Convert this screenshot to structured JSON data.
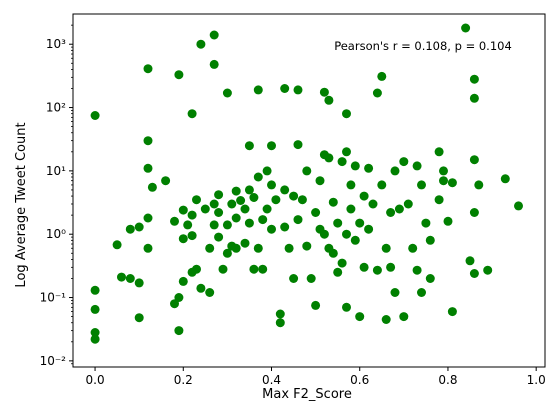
{
  "chart_data": {
    "type": "scatter",
    "xlabel": "Max F2_Score",
    "ylabel": "Log Average Tweet Count",
    "annotation": "Pearson's r = 0.108, p = 0.104",
    "x_scale": "linear",
    "y_scale": "log",
    "xlim": [
      -0.05,
      1.02
    ],
    "ylim": [
      0.008,
      3000
    ],
    "x_ticks": [
      0.0,
      0.2,
      0.4,
      0.6,
      0.8,
      1.0
    ],
    "x_tick_labels": [
      "0.0",
      "0.2",
      "0.4",
      "0.6",
      "0.8",
      "1.0"
    ],
    "y_ticks": [
      0.01,
      0.1,
      1,
      10,
      100,
      1000
    ],
    "y_tick_labels": [
      "10⁻²",
      "10⁻¹",
      "10⁰",
      "10¹",
      "10²",
      "10³"
    ],
    "grid": false,
    "marker_color": "#008000",
    "points": [
      [
        0.0,
        75
      ],
      [
        0.0,
        0.13
      ],
      [
        0.0,
        0.065
      ],
      [
        0.0,
        0.028
      ],
      [
        0.0,
        0.022
      ],
      [
        0.05,
        0.68
      ],
      [
        0.06,
        0.21
      ],
      [
        0.08,
        1.2
      ],
      [
        0.08,
        0.2
      ],
      [
        0.1,
        1.3
      ],
      [
        0.1,
        0.17
      ],
      [
        0.1,
        0.048
      ],
      [
        0.12,
        410
      ],
      [
        0.12,
        30
      ],
      [
        0.12,
        11
      ],
      [
        0.12,
        1.8
      ],
      [
        0.12,
        0.6
      ],
      [
        0.13,
        5.5
      ],
      [
        0.16,
        7
      ],
      [
        0.18,
        1.6
      ],
      [
        0.18,
        0.08
      ],
      [
        0.19,
        330
      ],
      [
        0.19,
        0.1
      ],
      [
        0.19,
        0.03
      ],
      [
        0.2,
        2.4
      ],
      [
        0.2,
        0.85
      ],
      [
        0.2,
        0.18
      ],
      [
        0.21,
        1.4
      ],
      [
        0.22,
        80
      ],
      [
        0.22,
        2.0
      ],
      [
        0.22,
        0.95
      ],
      [
        0.22,
        0.25
      ],
      [
        0.23,
        3.5
      ],
      [
        0.23,
        0.28
      ],
      [
        0.24,
        1000
      ],
      [
        0.24,
        0.14
      ],
      [
        0.25,
        2.5
      ],
      [
        0.26,
        0.6
      ],
      [
        0.26,
        0.12
      ],
      [
        0.27,
        1400
      ],
      [
        0.27,
        480
      ],
      [
        0.27,
        3.0
      ],
      [
        0.27,
        1.4
      ],
      [
        0.28,
        4.2
      ],
      [
        0.28,
        2.2
      ],
      [
        0.28,
        0.9
      ],
      [
        0.29,
        0.28
      ],
      [
        0.3,
        170
      ],
      [
        0.3,
        1.4
      ],
      [
        0.3,
        0.5
      ],
      [
        0.31,
        3.0
      ],
      [
        0.31,
        0.65
      ],
      [
        0.32,
        4.8
      ],
      [
        0.32,
        1.8
      ],
      [
        0.32,
        0.6
      ],
      [
        0.33,
        3.4
      ],
      [
        0.34,
        0.72
      ],
      [
        0.34,
        2.5
      ],
      [
        0.35,
        25
      ],
      [
        0.35,
        5.0
      ],
      [
        0.35,
        1.5
      ],
      [
        0.36,
        3.8
      ],
      [
        0.36,
        0.28
      ],
      [
        0.37,
        190
      ],
      [
        0.37,
        8.0
      ],
      [
        0.37,
        0.6
      ],
      [
        0.38,
        1.7
      ],
      [
        0.38,
        0.28
      ],
      [
        0.39,
        10
      ],
      [
        0.39,
        2.5
      ],
      [
        0.4,
        25
      ],
      [
        0.4,
        6.0
      ],
      [
        0.4,
        1.2
      ],
      [
        0.41,
        3.5
      ],
      [
        0.42,
        0.055
      ],
      [
        0.42,
        0.04
      ],
      [
        0.43,
        200
      ],
      [
        0.43,
        5.0
      ],
      [
        0.43,
        1.3
      ],
      [
        0.44,
        0.6
      ],
      [
        0.45,
        4.0
      ],
      [
        0.45,
        0.2
      ],
      [
        0.46,
        190
      ],
      [
        0.46,
        26
      ],
      [
        0.46,
        1.7
      ],
      [
        0.47,
        3.5
      ],
      [
        0.48,
        10
      ],
      [
        0.48,
        0.65
      ],
      [
        0.49,
        0.2
      ],
      [
        0.5,
        2.2
      ],
      [
        0.5,
        0.075
      ],
      [
        0.51,
        7.0
      ],
      [
        0.51,
        1.2
      ],
      [
        0.52,
        175
      ],
      [
        0.52,
        18
      ],
      [
        0.52,
        1.0
      ],
      [
        0.53,
        0.6
      ],
      [
        0.53,
        130
      ],
      [
        0.53,
        16
      ],
      [
        0.54,
        3.2
      ],
      [
        0.54,
        0.5
      ],
      [
        0.55,
        1.5
      ],
      [
        0.55,
        0.25
      ],
      [
        0.56,
        14
      ],
      [
        0.56,
        0.35
      ],
      [
        0.57,
        80
      ],
      [
        0.57,
        20
      ],
      [
        0.57,
        1.0
      ],
      [
        0.57,
        0.07
      ],
      [
        0.58,
        6.0
      ],
      [
        0.58,
        2.5
      ],
      [
        0.59,
        12
      ],
      [
        0.59,
        0.8
      ],
      [
        0.6,
        1.5
      ],
      [
        0.6,
        0.05
      ],
      [
        0.61,
        4.0
      ],
      [
        0.61,
        0.3
      ],
      [
        0.62,
        11
      ],
      [
        0.62,
        1.2
      ],
      [
        0.63,
        3.0
      ],
      [
        0.64,
        170
      ],
      [
        0.64,
        0.27
      ],
      [
        0.65,
        310
      ],
      [
        0.65,
        6.0
      ],
      [
        0.66,
        0.6
      ],
      [
        0.66,
        0.045
      ],
      [
        0.67,
        2.2
      ],
      [
        0.67,
        0.3
      ],
      [
        0.68,
        10
      ],
      [
        0.68,
        0.12
      ],
      [
        0.69,
        2.5
      ],
      [
        0.7,
        14
      ],
      [
        0.7,
        0.05
      ],
      [
        0.71,
        3.0
      ],
      [
        0.72,
        0.6
      ],
      [
        0.73,
        12
      ],
      [
        0.73,
        0.27
      ],
      [
        0.74,
        6.0
      ],
      [
        0.74,
        0.12
      ],
      [
        0.75,
        1.5
      ],
      [
        0.76,
        0.8
      ],
      [
        0.76,
        0.2
      ],
      [
        0.78,
        20
      ],
      [
        0.78,
        3.5
      ],
      [
        0.79,
        10
      ],
      [
        0.79,
        7.0
      ],
      [
        0.8,
        1.6
      ],
      [
        0.81,
        6.5
      ],
      [
        0.81,
        0.06
      ],
      [
        0.84,
        1800
      ],
      [
        0.85,
        0.38
      ],
      [
        0.86,
        280
      ],
      [
        0.86,
        140
      ],
      [
        0.86,
        15
      ],
      [
        0.86,
        2.2
      ],
      [
        0.86,
        0.24
      ],
      [
        0.87,
        6.0
      ],
      [
        0.89,
        0.27
      ],
      [
        0.93,
        7.5
      ],
      [
        0.96,
        2.8
      ]
    ]
  }
}
